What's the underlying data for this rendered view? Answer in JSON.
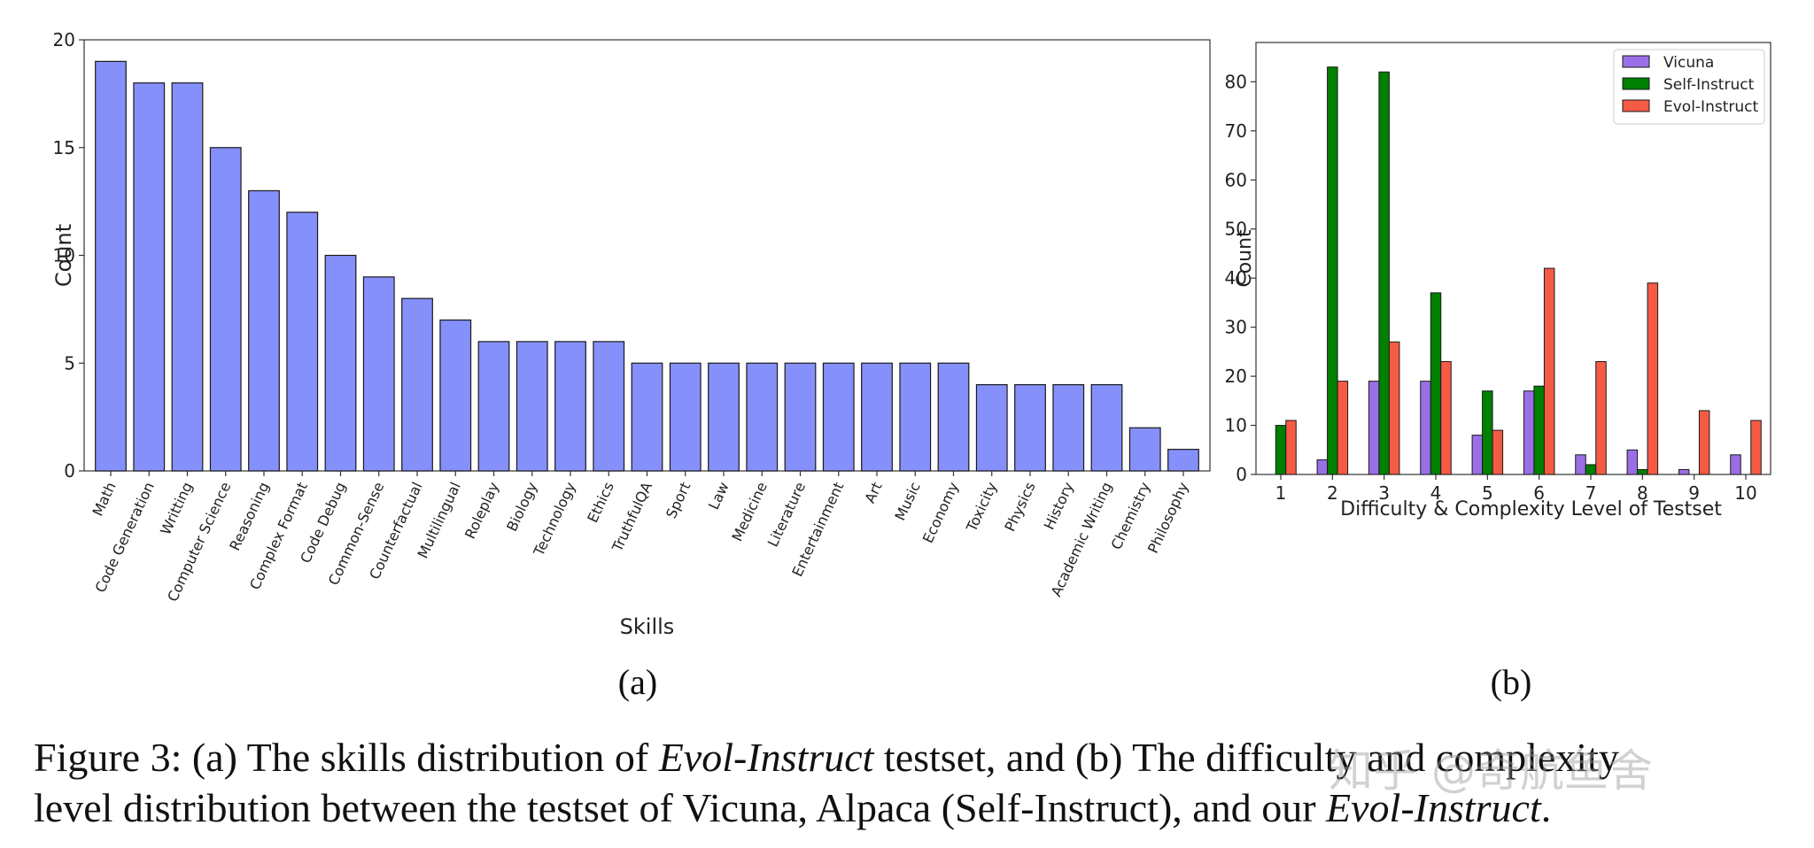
{
  "chart_data": [
    {
      "type": "bar",
      "panel_label": "(a)",
      "xlabel": "Skills",
      "ylabel": "Count",
      "ylim": [
        0,
        20
      ],
      "yticks": [
        0,
        5,
        10,
        15,
        20
      ],
      "bar_color": "#8690fb",
      "categories": [
        "Math",
        "Code Generation",
        "Writting",
        "Computer Science",
        "Reasoning",
        "Complex Format",
        "Code Debug",
        "Common-Sense",
        "Counterfactual",
        "Multilingual",
        "Roleplay",
        "Biology",
        "Technology",
        "Ethics",
        "TruthfulQA",
        "Sport",
        "Law",
        "Medicine",
        "Literature",
        "Entertainment",
        "Art",
        "Music",
        "Economy",
        "Toxicity",
        "Physics",
        "History",
        "Academic Writing",
        "Chemistry",
        "Philosophy"
      ],
      "values": [
        19,
        18,
        18,
        15,
        13,
        12,
        10,
        9,
        8,
        7,
        6,
        6,
        6,
        6,
        5,
        5,
        5,
        5,
        5,
        5,
        5,
        5,
        5,
        4,
        4,
        4,
        4,
        2,
        1
      ]
    },
    {
      "type": "bar",
      "panel_label": "(b)",
      "xlabel": "Difficulty & Complexity Level of Testset",
      "ylabel": "Count",
      "ylim": [
        0,
        88
      ],
      "yticks": [
        0,
        10,
        20,
        30,
        40,
        50,
        60,
        70,
        80
      ],
      "categories": [
        "1",
        "2",
        "3",
        "4",
        "5",
        "6",
        "7",
        "8",
        "9",
        "10"
      ],
      "legend_position": "top-right",
      "series": [
        {
          "name": "Vicuna",
          "color": "#9a6ee6",
          "values": [
            0,
            3,
            19,
            19,
            8,
            17,
            4,
            5,
            1,
            4
          ]
        },
        {
          "name": "Self-Instruct",
          "color": "#008000",
          "values": [
            10,
            83,
            82,
            37,
            17,
            18,
            2,
            1,
            0,
            0
          ]
        },
        {
          "name": "Evol-Instruct",
          "color": "#f55a45",
          "values": [
            11,
            19,
            27,
            23,
            9,
            42,
            23,
            39,
            13,
            11
          ]
        }
      ]
    }
  ],
  "caption": {
    "line1": [
      {
        "text": "Figure 3: (a) The skills distribution of ",
        "italic": false
      },
      {
        "text": "Evol-Instruct",
        "italic": true
      },
      {
        "text": " testset, and (b) The difficulty and complexity",
        "italic": false
      }
    ],
    "line2": [
      {
        "text": "level distribution between the testset of Vicuna, Alpaca (Self-Instruct), and our ",
        "italic": false
      },
      {
        "text": "Evol-Instruct",
        "italic": true
      },
      {
        "text": ".",
        "italic": false
      }
    ]
  },
  "watermark": "知乎 @奇航鱼舍"
}
